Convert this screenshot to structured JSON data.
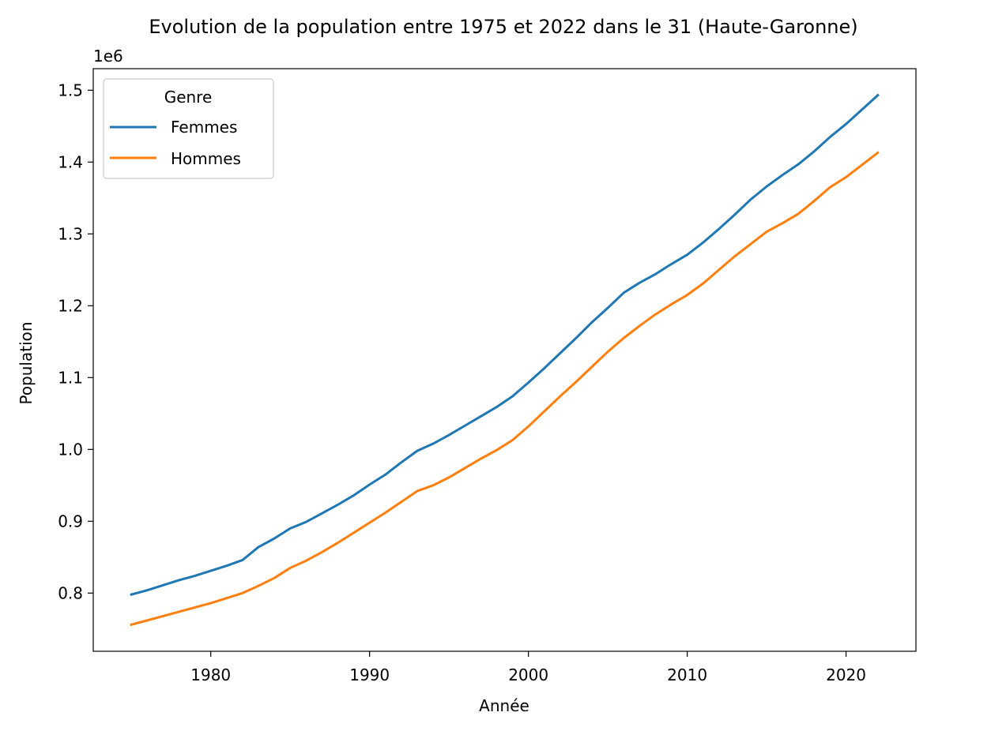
{
  "chart_data": {
    "type": "line",
    "title": "Evolution de la population entre 1975 et 2022 dans le 31 (Haute-Garonne)",
    "xlabel": "Année",
    "ylabel": "Population",
    "y_offset_label": "1e6",
    "xlim": [
      1972.6,
      2024.4
    ],
    "ylim": [
      719000,
      1530000
    ],
    "xticks": [
      1980,
      1990,
      2000,
      2010,
      2020
    ],
    "xtick_labels": [
      "1980",
      "1990",
      "2000",
      "2010",
      "2020"
    ],
    "yticks": [
      800000,
      900000,
      1000000,
      1100000,
      1200000,
      1300000,
      1400000,
      1500000
    ],
    "ytick_labels": [
      "0.8",
      "0.9",
      "1.0",
      "1.1",
      "1.2",
      "1.3",
      "1.4",
      "1.5"
    ],
    "legend": {
      "title": "Genre",
      "location": "upper-left"
    },
    "grid": false,
    "x": [
      1975,
      1976,
      1977,
      1978,
      1979,
      1980,
      1981,
      1982,
      1983,
      1984,
      1985,
      1986,
      1987,
      1988,
      1989,
      1990,
      1991,
      1992,
      1993,
      1994,
      1995,
      1996,
      1997,
      1998,
      1999,
      2000,
      2001,
      2002,
      2003,
      2004,
      2005,
      2006,
      2007,
      2008,
      2009,
      2010,
      2011,
      2012,
      2013,
      2014,
      2015,
      2016,
      2017,
      2018,
      2019,
      2020,
      2021,
      2022
    ],
    "series": [
      {
        "name": "Femmes",
        "color": "#1f77b4",
        "values": [
          798000,
          804000,
          811000,
          818000,
          824000,
          831000,
          838000,
          846000,
          864000,
          876000,
          890000,
          899000,
          911000,
          923000,
          936000,
          951000,
          965000,
          982000,
          998000,
          1008000,
          1020000,
          1033000,
          1046000,
          1059000,
          1074000,
          1093000,
          1113000,
          1134000,
          1155000,
          1177000,
          1197000,
          1218000,
          1232000,
          1244000,
          1258000,
          1271000,
          1288000,
          1307000,
          1327000,
          1348000,
          1366000,
          1382000,
          1397000,
          1415000,
          1435000,
          1453000,
          1473000,
          1493000
        ]
      },
      {
        "name": "Hommes",
        "color": "#ff7f0e",
        "values": [
          756000,
          762000,
          768000,
          774000,
          780000,
          786000,
          793000,
          800000,
          810000,
          821000,
          835000,
          845000,
          857000,
          870000,
          884000,
          898000,
          912000,
          927000,
          942000,
          950000,
          961000,
          974000,
          987000,
          999000,
          1013000,
          1032000,
          1053000,
          1074000,
          1094000,
          1115000,
          1136000,
          1155000,
          1172000,
          1188000,
          1202000,
          1215000,
          1231000,
          1250000,
          1269000,
          1286000,
          1303000,
          1315000,
          1328000,
          1346000,
          1365000,
          1379000,
          1396000,
          1413000
        ]
      }
    ]
  }
}
